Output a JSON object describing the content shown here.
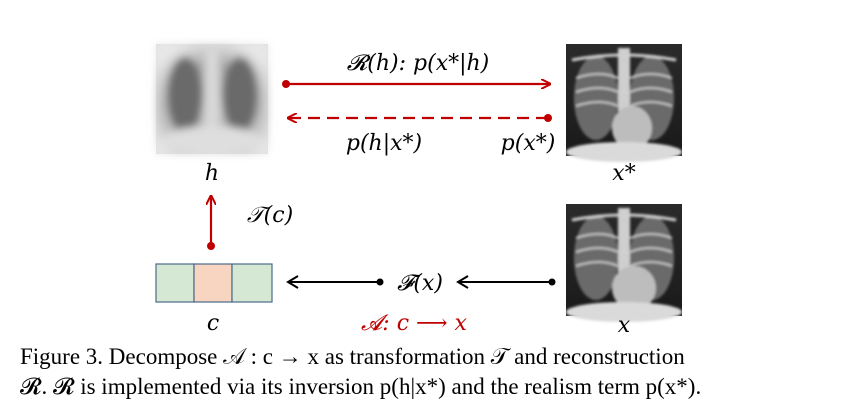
{
  "diagram": {
    "nodes": {
      "h_label": "h",
      "xstar_label": "x*",
      "c_label": "c",
      "x_label": "x"
    },
    "edges": {
      "reconstruction": "𝓡(h): p(x*|h)",
      "inversion": "p(h|x*)",
      "realism": "p(x*)",
      "transformation": "𝒯(c)",
      "feature": "𝓕(x)",
      "decompose": "𝓐: c ⟶ x"
    },
    "colors": {
      "accent_red": "#c00000",
      "arrow_black": "#000000",
      "code_green": "#d5e8d4",
      "code_orange": "#f8d5c0",
      "code_border": "#4a6a8a"
    }
  },
  "caption": {
    "line1": "Figure 3. Decompose 𝒜 : c → x as transformation 𝒯 and reconstruction",
    "line2": "𝓡. 𝓡 is implemented via its inversion p(h|x*) and the realism term p(x*)."
  }
}
